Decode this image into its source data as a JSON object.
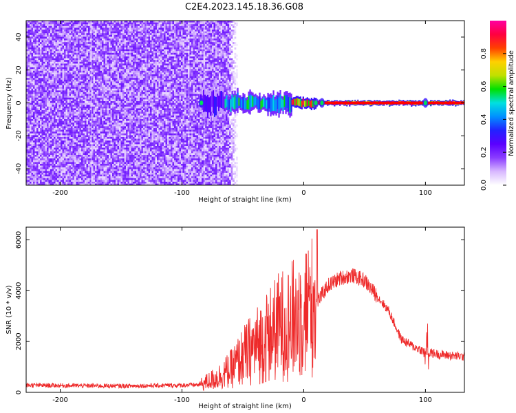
{
  "title": "C2E4.2023.145.18.36.G08",
  "colors": {
    "snr_line": "#ee2a2a",
    "line_of_interest": "#ff0000"
  },
  "chart_data": [
    {
      "type": "heatmap",
      "xlabel": "Height of straight line (km)",
      "ylabel": "Frequency (Hz)",
      "xlim": [
        -228,
        132
      ],
      "ylim": [
        -50,
        50
      ],
      "x_ticks": [
        "-200",
        "-100",
        "0",
        "100"
      ],
      "y_ticks": [
        "-40",
        "-20",
        "0",
        "20",
        "40"
      ],
      "colorbar": {
        "label": "Normalized spectral amplitude",
        "range": [
          0.0,
          1.0
        ],
        "ticks": [
          "0.0",
          "0.2",
          "0.4",
          "0.6",
          "0.8"
        ],
        "colormap": [
          "#ffffff",
          "#d8b8ff",
          "#8a3cff",
          "#5a00ff",
          "#2222ff",
          "#0090ff",
          "#00e0e0",
          "#00e000",
          "#c0e000",
          "#ffd000",
          "#ff4000",
          "#ff0040",
          "#ff00a0"
        ]
      },
      "noise_region_km": [
        -228,
        -62
      ],
      "signal_segments": [
        {
          "x": [
            -85,
            -65
          ],
          "freq_center": 0,
          "half_width_hz": 6,
          "level": 0.3
        },
        {
          "x": [
            -65,
            -10
          ],
          "freq_center": 0,
          "half_width_hz": 4,
          "level": 0.55
        },
        {
          "x": [
            -10,
            10
          ],
          "freq_center": 0,
          "half_width_hz": 2,
          "level": 0.85
        },
        {
          "x": [
            10,
            132
          ],
          "freq_center": 0,
          "half_width_hz": 1,
          "level": 0.95
        }
      ],
      "disturbances_km": [
        -84,
        10,
        15,
        100
      ]
    },
    {
      "type": "line",
      "xlabel": "Height of straight line (km)",
      "ylabel": "SNR (10 * v/v)",
      "xlim": [
        -228,
        132
      ],
      "ylim": [
        0,
        6500
      ],
      "x_ticks": [
        "-200",
        "-100",
        "0",
        "100"
      ],
      "y_ticks": [
        "0",
        "2000",
        "4000",
        "6000"
      ],
      "series": [
        {
          "x": [
            -228,
            -150,
            -100,
            -85,
            -70,
            -60,
            -50,
            -40,
            -30,
            -20,
            -10,
            0,
            10,
            20,
            30,
            40,
            50,
            60,
            70,
            80,
            90,
            100,
            110,
            120,
            132
          ],
          "values": [
            280,
            250,
            280,
            300,
            600,
            900,
            1400,
            1800,
            2200,
            2600,
            2800,
            3200,
            3500,
            4200,
            4500,
            4600,
            4400,
            3800,
            3200,
            2100,
            1800,
            1600,
            1500,
            1450,
            1400
          ]
        }
      ]
    }
  ]
}
